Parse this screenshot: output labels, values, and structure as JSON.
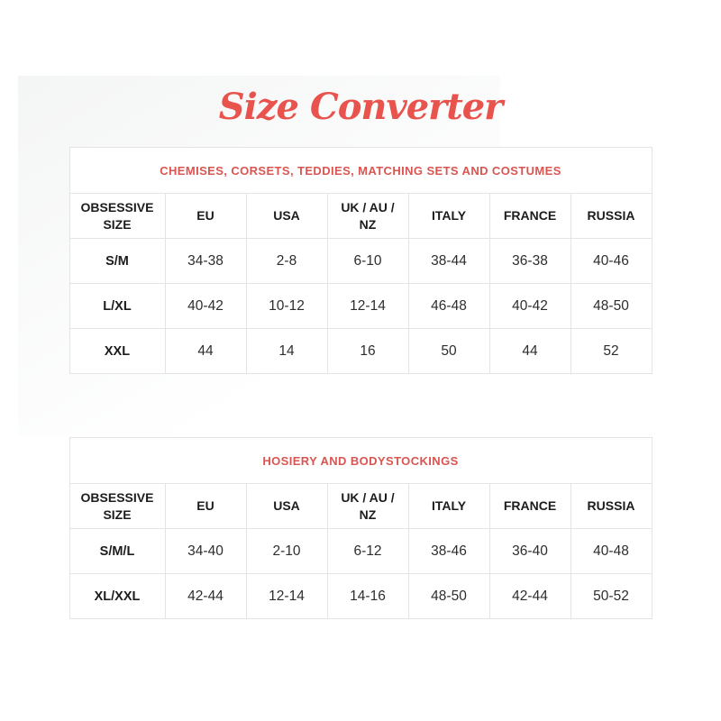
{
  "page": {
    "title": "Size Converter"
  },
  "tables": [
    {
      "caption": "CHEMISES, CORSETS, TEDDIES, MATCHING SETS AND COSTUMES",
      "columns": [
        "OBSESSIVE SIZE",
        "EU",
        "USA",
        "UK / AU / NZ",
        "ITALY",
        "FRANCE",
        "RUSSIA"
      ],
      "rows": [
        [
          "S/M",
          "34-38",
          "2-8",
          "6-10",
          "38-44",
          "36-38",
          "40-46"
        ],
        [
          "L/XL",
          "40-42",
          "10-12",
          "12-14",
          "46-48",
          "40-42",
          "48-50"
        ],
        [
          "XXL",
          "44",
          "14",
          "16",
          "50",
          "44",
          "52"
        ]
      ]
    },
    {
      "caption": "HOSIERY AND BODYSTOCKINGS",
      "columns": [
        "OBSESSIVE SIZE",
        "EU",
        "USA",
        "UK / AU / NZ",
        "ITALY",
        "FRANCE",
        "RUSSIA"
      ],
      "rows": [
        [
          "S/M/L",
          "34-40",
          "2-10",
          "6-12",
          "38-46",
          "36-40",
          "40-48"
        ],
        [
          "XL/XXL",
          "42-44",
          "12-14",
          "14-16",
          "48-50",
          "42-44",
          "50-52"
        ]
      ]
    }
  ],
  "colors": {
    "accent": "#e9534d",
    "caption": "#d95551",
    "border": "#e4e4e4",
    "text": "#1c1c1c"
  }
}
